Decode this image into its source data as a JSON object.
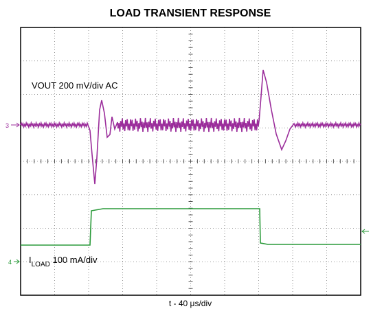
{
  "title": "LOAD TRANSIENT RESPONSE",
  "channels": [
    {
      "marker": "3",
      "label": "VOUT 200 mV/div AC"
    },
    {
      "marker": "4",
      "label": {
        "main": "I",
        "subscript": "LOAD",
        "rest": " 100 mA/div"
      }
    }
  ],
  "time_label": "t - 40 μs/div"
}
